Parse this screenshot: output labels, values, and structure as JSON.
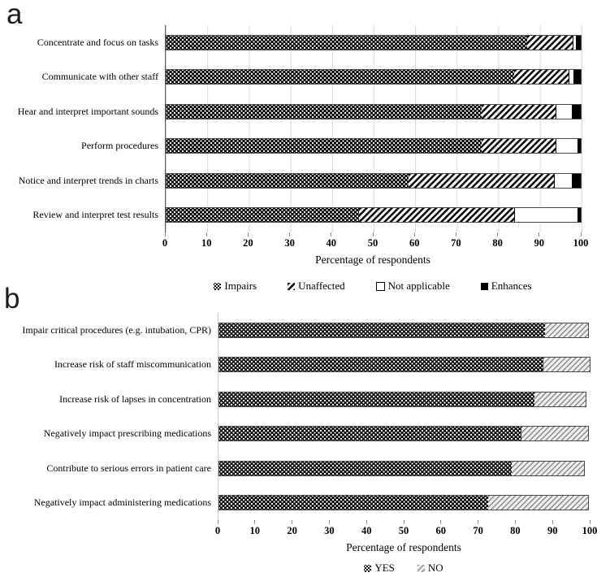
{
  "figure": {
    "panel_a_letter": "a",
    "panel_b_letter": "b"
  },
  "colors": {
    "ink": "#000000",
    "grid_line": "#d9d9d9",
    "axis_dark": "#595959",
    "axis_light": "#c9c9c9",
    "hatch_dark_fg": "#0a0a0a",
    "hatch_light_fg": "#8a8a8a",
    "bar_border": "#4a4a4a"
  },
  "chart_data": [
    {
      "type": "bar",
      "orientation": "horizontal",
      "stacked": true,
      "panel_label": "a",
      "categories": [
        "Concentrate and focus on tasks",
        "Communicate with other staff",
        "Hear and interpret important sounds",
        "Perform procedures",
        "Notice and interpret trends in charts",
        "Review and interpret test results"
      ],
      "series": [
        {
          "name": "Impairs",
          "pattern": "dots",
          "values": [
            87,
            84,
            76,
            76,
            58.5,
            46.5
          ]
        },
        {
          "name": "Unaffected",
          "pattern": "hatch-dark",
          "values": [
            11,
            13,
            18,
            18,
            35,
            37.5
          ]
        },
        {
          "name": "Not applicable",
          "pattern": "white",
          "values": [
            1,
            1.5,
            4,
            5.5,
            4.5,
            15.5
          ]
        },
        {
          "name": "Enhances",
          "pattern": "solid",
          "values": [
            1,
            1.5,
            2,
            0.5,
            2,
            0.5
          ]
        }
      ],
      "xlabel": "Percentage of respondents",
      "xlim": [
        0,
        100
      ],
      "x_ticks": [
        0,
        10,
        20,
        30,
        40,
        50,
        60,
        70,
        80,
        90,
        100
      ],
      "grid": true,
      "legend_position": "bottom"
    },
    {
      "type": "bar",
      "orientation": "horizontal",
      "stacked": true,
      "panel_label": "b",
      "categories": [
        "Impair critical procedures (e.g. intubation, CPR)",
        "Increase risk of staff miscommunication",
        "Increase risk of lapses in concentration",
        "Negatively impact prescribing medications",
        "Contribute to serious errors in patient care",
        "Negatively impact administering medications"
      ],
      "series": [
        {
          "name": "YES",
          "pattern": "dots",
          "values": [
            88,
            87.5,
            85,
            81.5,
            79,
            72.5
          ]
        },
        {
          "name": "NO",
          "pattern": "hatch-light",
          "values": [
            11.5,
            12.5,
            14,
            18,
            19.5,
            27
          ]
        }
      ],
      "xlabel": "Percentage of respondents",
      "xlim": [
        0,
        100
      ],
      "x_ticks": [
        0,
        10,
        20,
        30,
        40,
        50,
        60,
        70,
        80,
        90,
        100
      ],
      "grid": false,
      "legend_position": "bottom"
    }
  ]
}
